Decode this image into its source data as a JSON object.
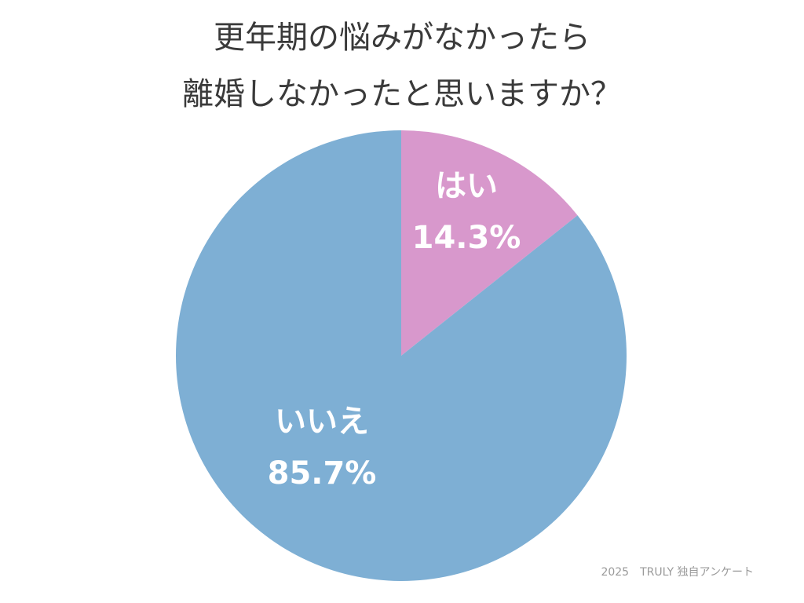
{
  "chart_data": {
    "type": "pie",
    "title": [
      "更年期の悩みがなかったら",
      "離婚しなかったと思いますか？"
    ],
    "categories": [
      "はい",
      "いいえ"
    ],
    "values": [
      14.3,
      85.7
    ],
    "value_labels": [
      "14.3%",
      "85.7%"
    ],
    "colors": [
      "#d898cc",
      "#7eafd4"
    ],
    "source": "2025　TRULY 独自アンケート"
  }
}
